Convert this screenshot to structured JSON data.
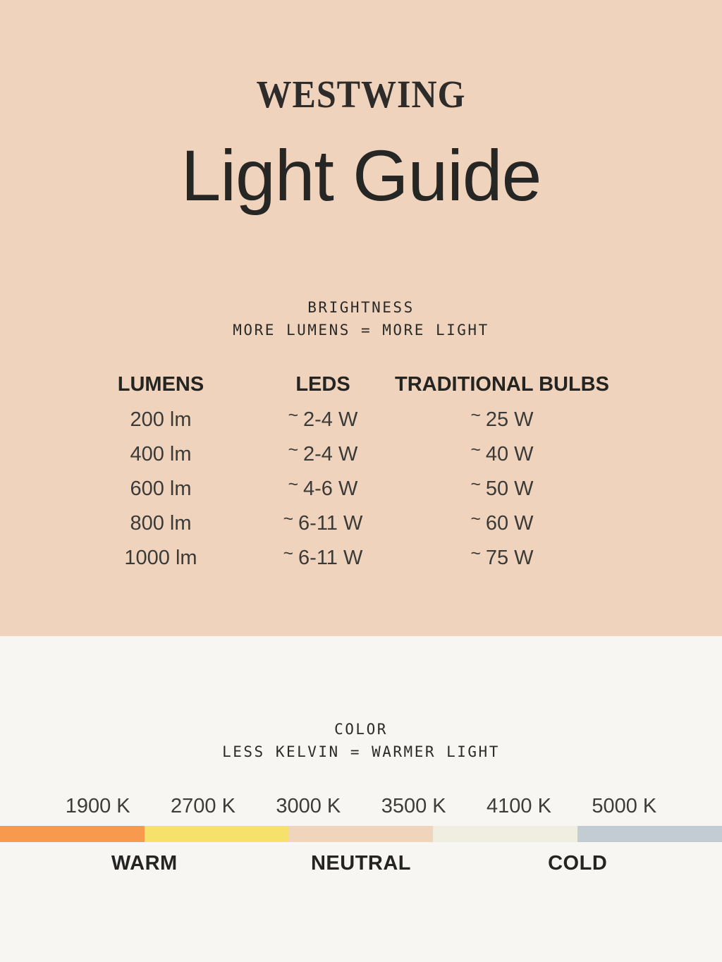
{
  "brand": {
    "logo": "WESTWING"
  },
  "title": "Light Guide",
  "table": {
    "heading": "BRIGHTNESS",
    "subheading": "MORE LUMENS = MORE LIGHT",
    "approx": "~",
    "columns": [
      "LUMENS",
      "LEDS",
      "TRADITIONAL BULBS"
    ],
    "rows": [
      {
        "lumens": "200 lm",
        "leds": "2-4 W",
        "bulbs": "25 W"
      },
      {
        "lumens": "400 lm",
        "leds": "2-4 W",
        "bulbs": "40 W"
      },
      {
        "lumens": "600 lm",
        "leds": "4-6 W",
        "bulbs": "50 W"
      },
      {
        "lumens": "800 lm",
        "leds": "6-11 W",
        "bulbs": "60 W"
      },
      {
        "lumens": "1000 lm",
        "leds": "6-11 W",
        "bulbs": "75 W"
      }
    ]
  },
  "scale": {
    "heading": "COLOR",
    "subheading": "LESS KELVIN = WARMER LIGHT",
    "kelvin_labels": [
      "1900 K",
      "2700 K",
      "3000 K",
      "3500 K",
      "4100 K",
      "5000 K"
    ],
    "segments": [
      {
        "name": "warm-orange",
        "color": "#f79a4e"
      },
      {
        "name": "warm-yellow",
        "color": "#f6e26b"
      },
      {
        "name": "neutral-peach",
        "color": "#f0d4bc"
      },
      {
        "name": "neutral-cream",
        "color": "#f0eee1"
      },
      {
        "name": "cool-gray",
        "color": "#c3cbd3"
      }
    ],
    "temperature_labels": [
      "WARM",
      "NEUTRAL",
      "COLD"
    ]
  },
  "colors": {
    "top_background": "#f0d3bc",
    "bottom_background": "#f7f6f3",
    "text": "#2b2a28"
  },
  "chart_data": [
    {
      "type": "table",
      "title": "BRIGHTNESS",
      "subtitle": "MORE LUMENS = MORE LIGHT",
      "columns": [
        "LUMENS",
        "LEDS",
        "TRADITIONAL BULBS"
      ],
      "rows": [
        [
          "200 lm",
          "~ 2-4 W",
          "~ 25 W"
        ],
        [
          "400 lm",
          "~ 2-4 W",
          "~ 40 W"
        ],
        [
          "600 lm",
          "~ 4-6 W",
          "~ 50 W"
        ],
        [
          "800 lm",
          "~ 6-11 W",
          "~ 60 W"
        ],
        [
          "1000 lm",
          "~ 6-11 W",
          "~ 75 W"
        ]
      ]
    },
    {
      "type": "heatmap",
      "title": "COLOR",
      "subtitle": "LESS KELVIN = WARMER LIGHT",
      "x": [
        "1900 K",
        "2700 K",
        "3000 K",
        "3500 K",
        "4100 K",
        "5000 K"
      ],
      "segment_colors": [
        "#f79a4e",
        "#f6e26b",
        "#f0d4bc",
        "#f0eee1",
        "#c3cbd3"
      ],
      "annotations": [
        "WARM",
        "NEUTRAL",
        "COLD"
      ],
      "legend_position": "below-bar"
    }
  ]
}
